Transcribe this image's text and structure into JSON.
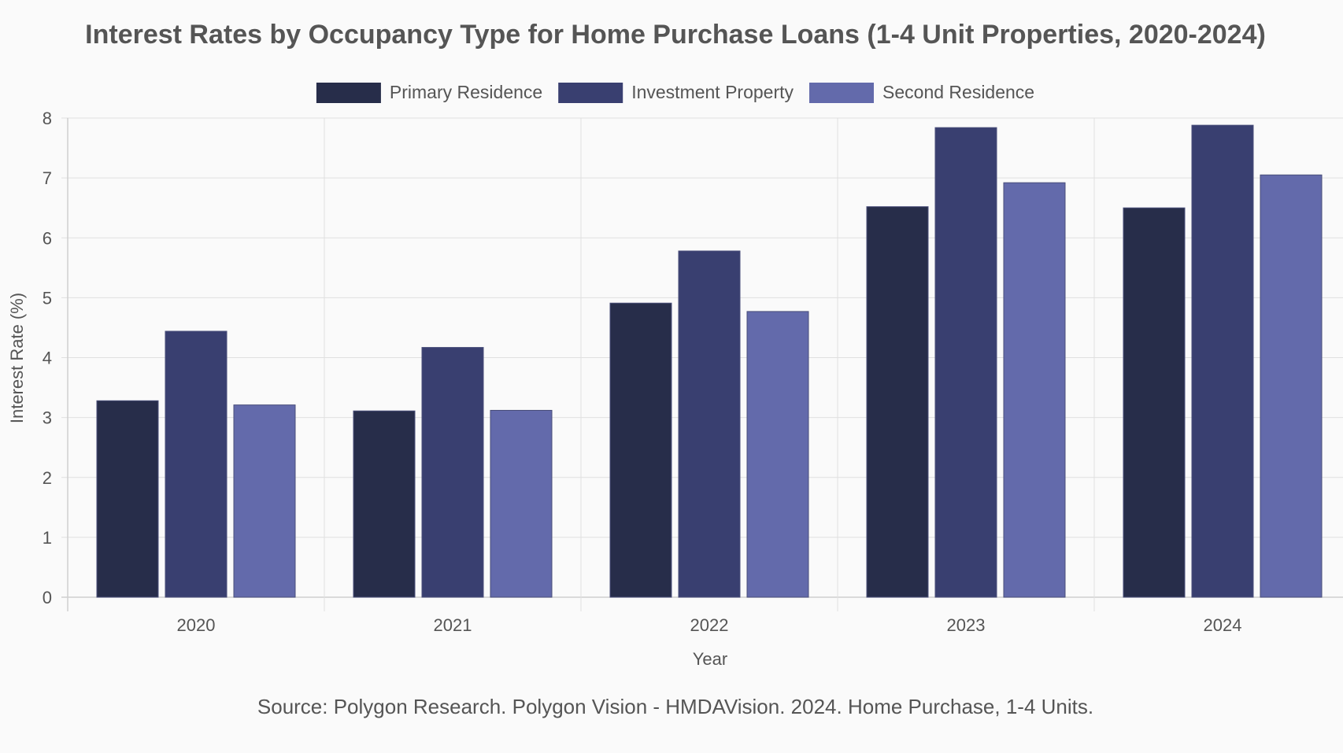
{
  "chart_data": {
    "type": "bar",
    "title": "Interest Rates by Occupancy Type for Home Purchase Loans (1-4 Unit Properties, 2020-2024)",
    "xlabel": "Year",
    "ylabel": "Interest Rate (%)",
    "categories": [
      "2020",
      "2021",
      "2022",
      "2023",
      "2024"
    ],
    "ylim": [
      0,
      8
    ],
    "yticks": [
      0,
      1,
      2,
      3,
      4,
      5,
      6,
      7,
      8
    ],
    "grid": true,
    "legend_position": "top-center",
    "series": [
      {
        "name": "Primary Residence",
        "color": "#272d4a",
        "values": [
          3.28,
          3.11,
          4.91,
          6.52,
          6.5
        ]
      },
      {
        "name": "Investment Property",
        "color": "#393f70",
        "values": [
          4.44,
          4.17,
          5.78,
          7.84,
          7.88
        ]
      },
      {
        "name": "Second Residence",
        "color": "#636aab",
        "values": [
          3.21,
          3.12,
          4.77,
          6.92,
          7.05
        ]
      }
    ],
    "source": "Source: Polygon Research. Polygon Vision - HMDAVision. 2024. Home Purchase, 1-4 Units."
  }
}
